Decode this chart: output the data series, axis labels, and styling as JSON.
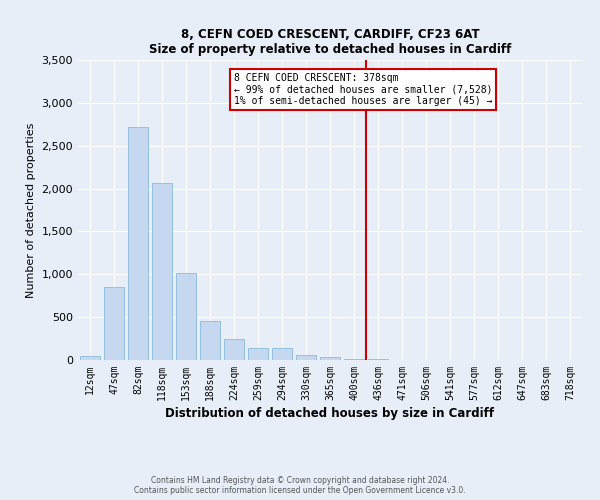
{
  "title": "8, CEFN COED CRESCENT, CARDIFF, CF23 6AT",
  "subtitle": "Size of property relative to detached houses in Cardiff",
  "xlabel": "Distribution of detached houses by size in Cardiff",
  "ylabel": "Number of detached properties",
  "bar_color": "#c5d8f0",
  "bar_edge_color": "#7ab4d8",
  "background_color": "#e8eef7",
  "categories": [
    "12sqm",
    "47sqm",
    "82sqm",
    "118sqm",
    "153sqm",
    "188sqm",
    "224sqm",
    "259sqm",
    "294sqm",
    "330sqm",
    "365sqm",
    "400sqm",
    "436sqm",
    "471sqm",
    "506sqm",
    "541sqm",
    "577sqm",
    "612sqm",
    "647sqm",
    "683sqm",
    "718sqm"
  ],
  "values": [
    50,
    850,
    2720,
    2070,
    1010,
    460,
    240,
    145,
    145,
    60,
    30,
    15,
    8,
    5,
    3,
    2,
    2,
    1,
    1,
    1,
    1
  ],
  "ylim": [
    0,
    3500
  ],
  "yticks": [
    0,
    500,
    1000,
    1500,
    2000,
    2500,
    3000,
    3500
  ],
  "property_label": "8 CEFN COED CRESCENT: 378sqm",
  "annotation_line1": "← 99% of detached houses are smaller (7,528)",
  "annotation_line2": "1% of semi-detached houses are larger (45) →",
  "vline_color": "#cc0000",
  "vline_x": 11.5,
  "footer_line1": "Contains HM Land Registry data © Crown copyright and database right 2024.",
  "footer_line2": "Contains public sector information licensed under the Open Government Licence v3.0."
}
